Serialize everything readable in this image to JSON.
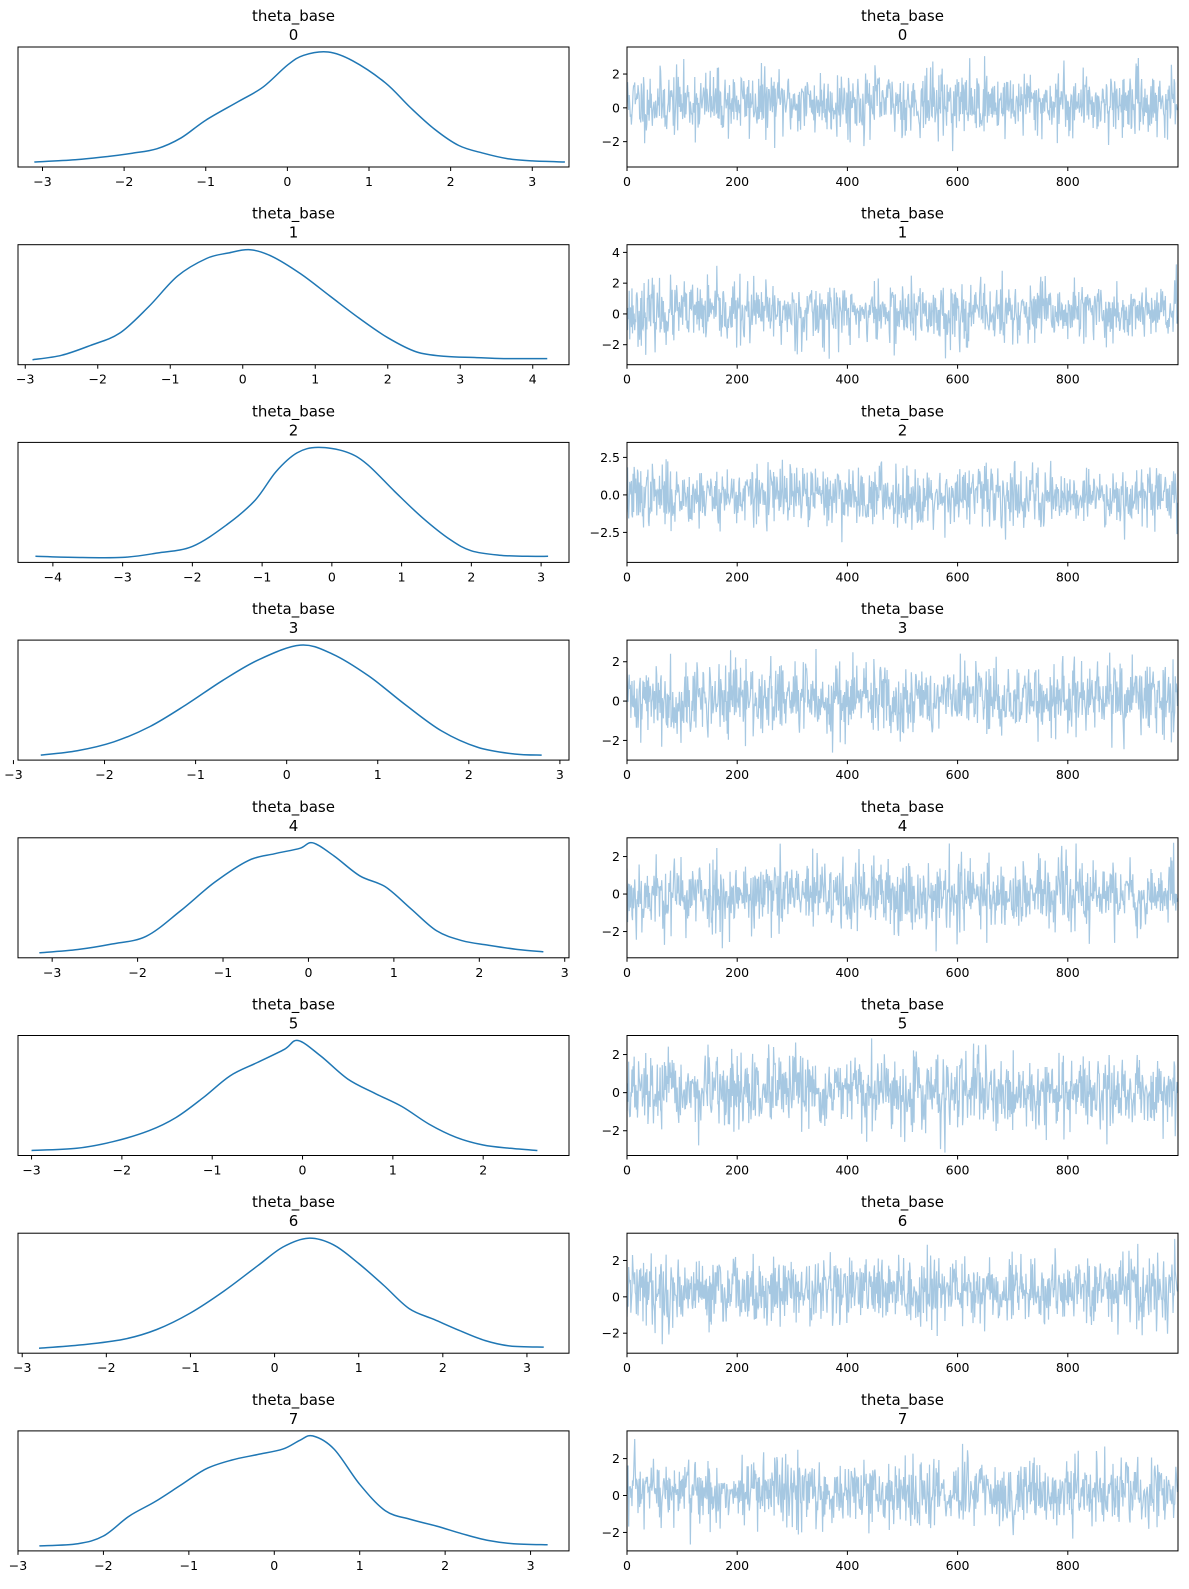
{
  "figure": {
    "kde_color": "#1f77b4",
    "trace_color": "#a6c8e2"
  },
  "chart_data": [
    {
      "type": "line",
      "role": "kde",
      "title": "theta_base",
      "subtitle": "0",
      "xlim": [
        -3.3,
        3.45
      ],
      "xticks": [
        -3,
        -2,
        -1,
        0,
        1,
        2,
        3
      ],
      "yticks": [],
      "x": [
        -3.1,
        -2.6,
        -2.2,
        -1.9,
        -1.6,
        -1.3,
        -1.0,
        -0.6,
        -0.3,
        0.0,
        0.2,
        0.5,
        0.8,
        1.2,
        1.5,
        1.8,
        2.1,
        2.4,
        2.7,
        3.0,
        3.4
      ],
      "y": [
        0.0,
        0.02,
        0.05,
        0.08,
        0.12,
        0.22,
        0.38,
        0.55,
        0.68,
        0.88,
        0.97,
        1.0,
        0.92,
        0.72,
        0.5,
        0.3,
        0.15,
        0.08,
        0.03,
        0.01,
        0.0
      ]
    },
    {
      "type": "line",
      "role": "trace",
      "title": "theta_base",
      "subtitle": "0",
      "xlim": [
        0,
        1000
      ],
      "ylim": [
        -3.5,
        3.6
      ],
      "xticks": [
        0,
        200,
        400,
        600,
        800
      ],
      "yticks": [
        -2,
        0,
        2
      ],
      "draws": 1000,
      "seed": 11,
      "sd": 0.95,
      "mean": 0.3
    },
    {
      "type": "line",
      "role": "kde",
      "title": "theta_base",
      "subtitle": "1",
      "xlim": [
        -3.1,
        4.5
      ],
      "xticks": [
        -3,
        -2,
        -1,
        0,
        1,
        2,
        3,
        4
      ],
      "yticks": [],
      "x": [
        -2.9,
        -2.5,
        -2.1,
        -1.7,
        -1.3,
        -0.9,
        -0.5,
        -0.2,
        0.1,
        0.4,
        0.8,
        1.2,
        1.6,
        2.0,
        2.4,
        2.8,
        3.2,
        3.6,
        4.2
      ],
      "y": [
        0.0,
        0.04,
        0.13,
        0.24,
        0.48,
        0.76,
        0.92,
        0.97,
        1.0,
        0.94,
        0.78,
        0.58,
        0.38,
        0.2,
        0.07,
        0.03,
        0.02,
        0.01,
        0.01
      ]
    },
    {
      "type": "line",
      "role": "trace",
      "title": "theta_base",
      "subtitle": "1",
      "xlim": [
        0,
        1000
      ],
      "ylim": [
        -3.3,
        4.5
      ],
      "xticks": [
        0,
        200,
        400,
        600,
        800
      ],
      "yticks": [
        -2,
        0,
        2,
        4
      ],
      "draws": 1000,
      "seed": 23,
      "sd": 1.0,
      "mean": 0.05
    },
    {
      "type": "line",
      "role": "kde",
      "title": "theta_base",
      "subtitle": "2",
      "xlim": [
        -4.5,
        3.4
      ],
      "xticks": [
        -4,
        -3,
        -2,
        -1,
        0,
        1,
        2,
        3
      ],
      "yticks": [],
      "x": [
        -4.25,
        -3.7,
        -3.0,
        -2.5,
        -2.0,
        -1.5,
        -1.1,
        -0.8,
        -0.5,
        -0.2,
        0.2,
        0.5,
        0.9,
        1.3,
        1.7,
        2.0,
        2.4,
        2.8,
        3.1
      ],
      "y": [
        0.01,
        0.0,
        0.0,
        0.04,
        0.1,
        0.3,
        0.52,
        0.78,
        0.95,
        1.0,
        0.96,
        0.85,
        0.6,
        0.36,
        0.16,
        0.06,
        0.02,
        0.01,
        0.01
      ]
    },
    {
      "type": "line",
      "role": "trace",
      "title": "theta_base",
      "subtitle": "2",
      "xlim": [
        0,
        1000
      ],
      "ylim": [
        -4.5,
        3.5
      ],
      "xticks": [
        0,
        200,
        400,
        600,
        800
      ],
      "yticks": [
        -2.5,
        0.0,
        2.5
      ],
      "draws": 1000,
      "seed": 37,
      "sd": 1.0,
      "mean": -0.05
    },
    {
      "type": "line",
      "role": "kde",
      "title": "theta_base",
      "subtitle": "3",
      "xlim": [
        -2.95,
        3.1
      ],
      "xticks": [
        -3,
        -2,
        -1,
        0,
        1,
        2,
        3
      ],
      "yticks": [],
      "x": [
        -2.7,
        -2.3,
        -1.9,
        -1.5,
        -1.1,
        -0.7,
        -0.3,
        0.15,
        0.5,
        0.9,
        1.3,
        1.7,
        2.1,
        2.5,
        2.8
      ],
      "y": [
        0.0,
        0.04,
        0.12,
        0.26,
        0.46,
        0.68,
        0.87,
        1.0,
        0.92,
        0.72,
        0.46,
        0.22,
        0.07,
        0.01,
        0.0
      ]
    },
    {
      "type": "line",
      "role": "trace",
      "title": "theta_base",
      "subtitle": "3",
      "xlim": [
        0,
        1000
      ],
      "ylim": [
        -3.0,
        3.1
      ],
      "xticks": [
        0,
        200,
        400,
        600,
        800
      ],
      "yticks": [
        -2,
        0,
        2
      ],
      "draws": 1000,
      "seed": 41,
      "sd": 0.95,
      "mean": 0.1
    },
    {
      "type": "line",
      "role": "kde",
      "title": "theta_base",
      "subtitle": "4",
      "xlim": [
        -3.4,
        3.05
      ],
      "xticks": [
        -3,
        -2,
        -1,
        0,
        1,
        2,
        3
      ],
      "yticks": [],
      "x": [
        -3.15,
        -2.7,
        -2.3,
        -1.9,
        -1.5,
        -1.1,
        -0.7,
        -0.4,
        -0.1,
        0.05,
        0.3,
        0.6,
        0.9,
        1.2,
        1.5,
        1.8,
        2.1,
        2.45,
        2.75
      ],
      "y": [
        0.0,
        0.03,
        0.08,
        0.15,
        0.38,
        0.64,
        0.84,
        0.9,
        0.95,
        1.0,
        0.88,
        0.7,
        0.6,
        0.4,
        0.2,
        0.11,
        0.07,
        0.03,
        0.01
      ]
    },
    {
      "type": "line",
      "role": "trace",
      "title": "theta_base",
      "subtitle": "4",
      "xlim": [
        0,
        1000
      ],
      "ylim": [
        -3.4,
        3.0
      ],
      "xticks": [
        0,
        200,
        400,
        600,
        800
      ],
      "yticks": [
        -2,
        0,
        2
      ],
      "draws": 1000,
      "seed": 53,
      "sd": 1.0,
      "mean": -0.05
    },
    {
      "type": "line",
      "role": "kde",
      "title": "theta_base",
      "subtitle": "5",
      "xlim": [
        -3.15,
        2.95
      ],
      "xticks": [
        -3,
        -2,
        -1,
        0,
        1,
        2
      ],
      "yticks": [],
      "x": [
        -3.0,
        -2.5,
        -2.1,
        -1.7,
        -1.4,
        -1.1,
        -0.8,
        -0.5,
        -0.2,
        -0.05,
        0.2,
        0.5,
        0.8,
        1.1,
        1.4,
        1.7,
        2.0,
        2.3,
        2.6
      ],
      "y": [
        0.0,
        0.02,
        0.08,
        0.18,
        0.3,
        0.48,
        0.68,
        0.8,
        0.92,
        1.0,
        0.86,
        0.65,
        0.52,
        0.4,
        0.24,
        0.12,
        0.05,
        0.02,
        0.0
      ]
    },
    {
      "type": "line",
      "role": "trace",
      "title": "theta_base",
      "subtitle": "5",
      "xlim": [
        0,
        1000
      ],
      "ylim": [
        -3.3,
        3.0
      ],
      "xticks": [
        0,
        200,
        400,
        600,
        800
      ],
      "yticks": [
        -2,
        0,
        2
      ],
      "draws": 1000,
      "seed": 67,
      "sd": 0.95,
      "mean": 0.0
    },
    {
      "type": "line",
      "role": "kde",
      "title": "theta_base",
      "subtitle": "6",
      "xlim": [
        -3.05,
        3.5
      ],
      "xticks": [
        -3,
        -2,
        -1,
        0,
        1,
        2,
        3
      ],
      "yticks": [],
      "x": [
        -2.8,
        -2.3,
        -1.8,
        -1.4,
        -1.0,
        -0.6,
        -0.2,
        0.1,
        0.4,
        0.7,
        1.0,
        1.3,
        1.6,
        1.9,
        2.2,
        2.5,
        2.8,
        3.2
      ],
      "y": [
        0.0,
        0.03,
        0.08,
        0.17,
        0.32,
        0.52,
        0.75,
        0.92,
        1.0,
        0.94,
        0.77,
        0.57,
        0.36,
        0.26,
        0.16,
        0.07,
        0.02,
        0.01
      ]
    },
    {
      "type": "line",
      "role": "trace",
      "title": "theta_base",
      "subtitle": "6",
      "xlim": [
        0,
        1000
      ],
      "ylim": [
        -3.1,
        3.5
      ],
      "xticks": [
        0,
        200,
        400,
        600,
        800
      ],
      "yticks": [
        -2,
        0,
        2
      ],
      "draws": 1000,
      "seed": 79,
      "sd": 0.95,
      "mean": 0.35
    },
    {
      "type": "line",
      "role": "kde",
      "title": "theta_base",
      "subtitle": "7",
      "xlim": [
        -3.0,
        3.45
      ],
      "xticks": [
        -3,
        -2,
        -1,
        0,
        1,
        2,
        3
      ],
      "yticks": [],
      "x": [
        -2.75,
        -2.3,
        -2.0,
        -1.7,
        -1.4,
        -1.1,
        -0.8,
        -0.5,
        -0.2,
        0.1,
        0.3,
        0.45,
        0.7,
        1.0,
        1.3,
        1.6,
        1.9,
        2.2,
        2.5,
        2.8,
        3.2
      ],
      "y": [
        0.0,
        0.02,
        0.09,
        0.27,
        0.4,
        0.55,
        0.7,
        0.78,
        0.83,
        0.88,
        0.96,
        1.0,
        0.88,
        0.56,
        0.32,
        0.24,
        0.18,
        0.11,
        0.05,
        0.02,
        0.01
      ]
    },
    {
      "type": "line",
      "role": "trace",
      "title": "theta_base",
      "subtitle": "7",
      "xlim": [
        0,
        1000
      ],
      "ylim": [
        -3.0,
        3.5
      ],
      "xticks": [
        0,
        200,
        400,
        600,
        800
      ],
      "yticks": [
        -2,
        0,
        2
      ],
      "draws": 1000,
      "seed": 97,
      "sd": 0.95,
      "mean": 0.15
    }
  ]
}
